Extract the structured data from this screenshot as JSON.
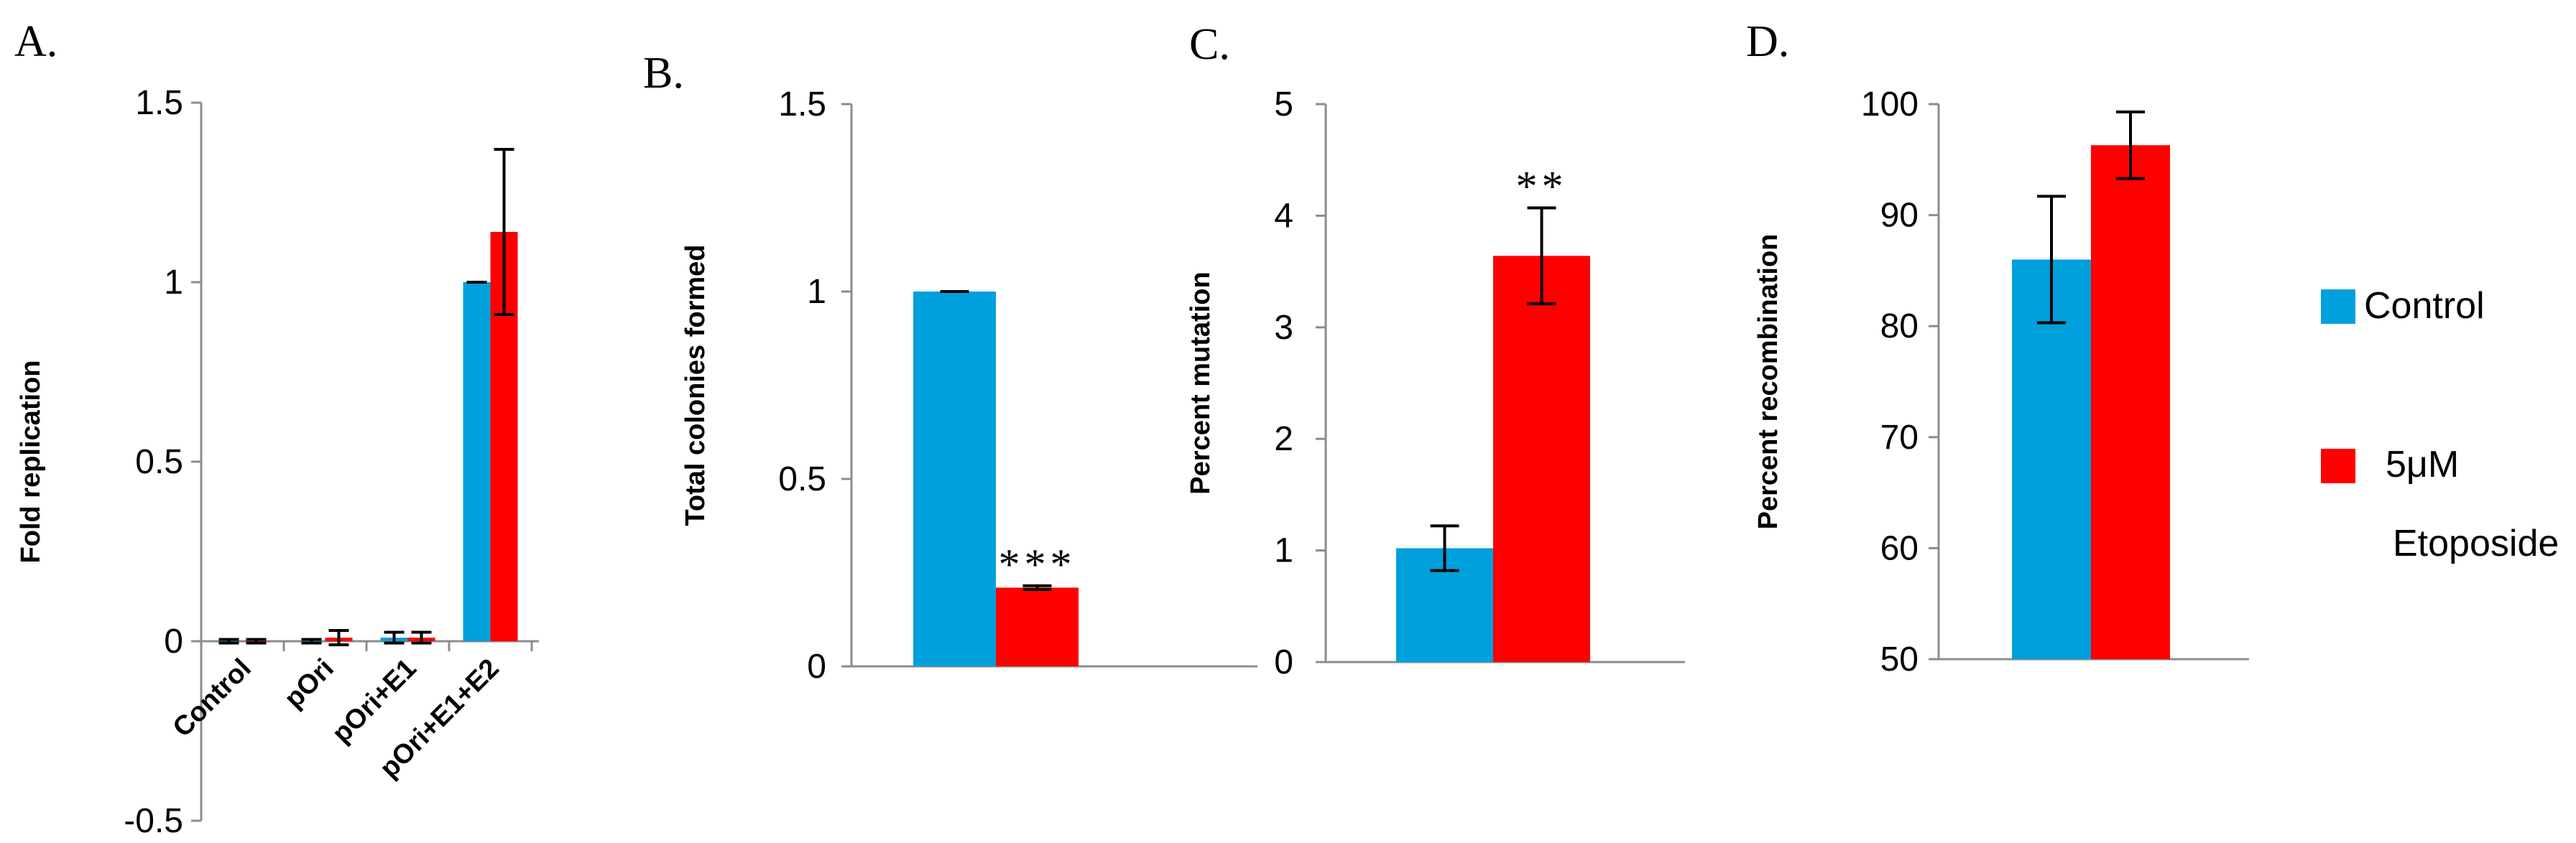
{
  "colors": {
    "control": "#00A0DC",
    "etoposide": "#FF0000"
  },
  "chart_data": [
    {
      "type": "bar",
      "panel": "A.",
      "ylabel": "Fold replication",
      "ylim": [
        -0.5,
        1.5
      ],
      "yticks": [
        1.5,
        1,
        0.5,
        0,
        -0.5
      ],
      "ytick_labels": [
        "1.5",
        "1",
        "0.5",
        "0",
        "-0.5"
      ],
      "categories": [
        "Control",
        "pOri",
        "pOri+E1",
        "pOri+E1+E2"
      ],
      "series": [
        {
          "name": "Control",
          "values": [
            0.0,
            0.0,
            0.01,
            1.0
          ],
          "errors": [
            0.005,
            0.005,
            0.015,
            0.0
          ]
        },
        {
          "name": "5μM Etoposide",
          "values": [
            0.0,
            0.01,
            0.01,
            1.14
          ],
          "errors": [
            0.005,
            0.02,
            0.015,
            0.23
          ]
        }
      ],
      "annotations": []
    },
    {
      "type": "bar",
      "panel": "B.",
      "ylabel": "Total colonies formed",
      "ylim": [
        0,
        1.5
      ],
      "yticks": [
        1.5,
        1,
        0.5,
        0
      ],
      "ytick_labels": [
        "1.5",
        "1",
        "0.5",
        "0"
      ],
      "categories": [
        ""
      ],
      "series": [
        {
          "name": "Control",
          "values": [
            1.0
          ],
          "errors": [
            0.0
          ]
        },
        {
          "name": "5μM Etoposide",
          "values": [
            0.21
          ],
          "errors": [
            0.005
          ]
        }
      ],
      "annotations": [
        {
          "text": "***",
          "series": 1,
          "category": 0
        }
      ]
    },
    {
      "type": "bar",
      "panel": "C.",
      "ylabel": "Percent mutation",
      "ylim": [
        0,
        5
      ],
      "yticks": [
        5,
        4,
        3,
        2,
        1,
        0
      ],
      "ytick_labels": [
        "5",
        "4",
        "3",
        "2",
        "1",
        "0"
      ],
      "categories": [
        ""
      ],
      "series": [
        {
          "name": "Control",
          "values": [
            1.02
          ],
          "errors": [
            0.2
          ]
        },
        {
          "name": "5μM Etoposide",
          "values": [
            3.64
          ],
          "errors": [
            0.43
          ]
        }
      ],
      "annotations": [
        {
          "text": "**",
          "series": 1,
          "category": 0
        }
      ]
    },
    {
      "type": "bar",
      "panel": "D.",
      "ylabel": "Percent recombination",
      "ylim": [
        50,
        100
      ],
      "yticks": [
        100,
        90,
        80,
        70,
        60,
        50
      ],
      "ytick_labels": [
        "100",
        "90",
        "80",
        "70",
        "60",
        "50"
      ],
      "categories": [
        ""
      ],
      "series": [
        {
          "name": "Control",
          "values": [
            86.0
          ],
          "errors": [
            5.7
          ]
        },
        {
          "name": "5μM Etoposide",
          "values": [
            96.3
          ],
          "errors": [
            3.0
          ]
        }
      ],
      "annotations": []
    }
  ],
  "legend": {
    "position": "right",
    "items": [
      {
        "label": "Control",
        "lines": [
          "Control"
        ],
        "color_key": "control"
      },
      {
        "label": "5μM Etoposide",
        "lines": [
          "5μM",
          "Etoposide"
        ],
        "color_key": "etoposide"
      }
    ]
  }
}
